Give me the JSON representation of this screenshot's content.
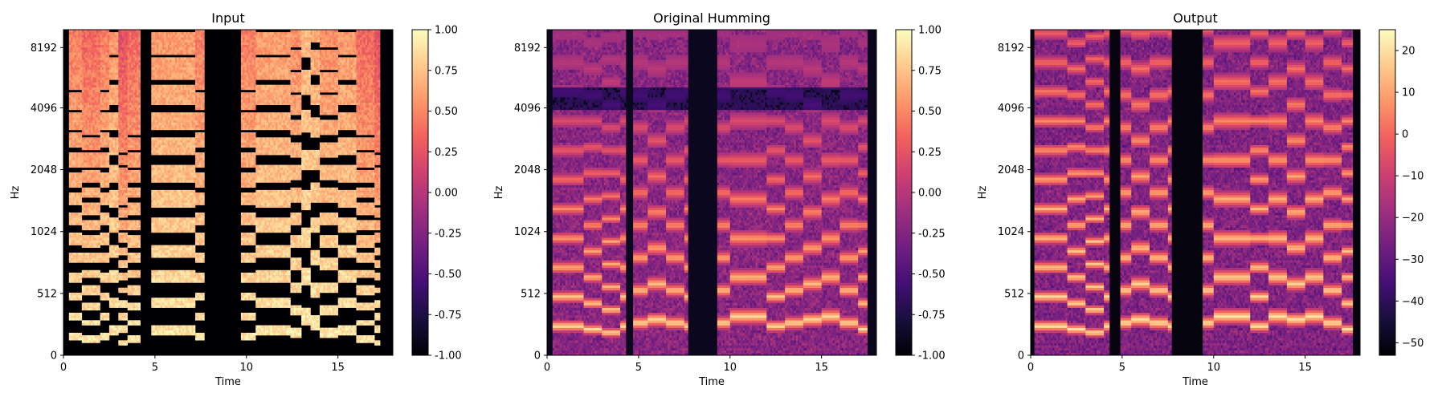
{
  "chart_data": [
    {
      "type": "heatmap",
      "title": "Input",
      "xlabel": "Time",
      "ylabel": "Hz",
      "xlim": [
        0,
        18
      ],
      "x_ticks": [
        0,
        5,
        10,
        15
      ],
      "y_ticks": [
        "0",
        "512",
        "1024",
        "2048",
        "4096",
        "8192"
      ],
      "colorbar": {
        "range": [
          -1.0,
          1.0
        ],
        "ticks": [
          "1.00",
          "0.75",
          "0.50",
          "0.25",
          "0.00",
          "-0.25",
          "-0.50",
          "-0.75",
          "-1.00"
        ]
      },
      "style": "sparse",
      "segments": [
        [
          0.3,
          4.2
        ],
        [
          4.8,
          7.7
        ],
        [
          9.7,
          17.3
        ]
      ],
      "contour": [
        [
          0,
          0.06
        ],
        [
          0.5,
          0.06
        ],
        [
          1,
          0.05
        ],
        [
          1.5,
          0.05
        ],
        [
          2,
          0.06
        ],
        [
          2.5,
          0.08
        ],
        [
          3,
          0.04
        ],
        [
          3.5,
          0.05
        ],
        [
          4,
          0.05
        ],
        [
          4.8,
          0.08
        ],
        [
          5.5,
          0.08
        ],
        [
          6.5,
          0.08
        ],
        [
          7.2,
          0.06
        ],
        [
          7.7,
          0.04
        ],
        [
          9.7,
          0.06
        ],
        [
          10.5,
          0.08
        ],
        [
          11.5,
          0.08
        ],
        [
          12.4,
          0.07
        ],
        [
          13,
          0.12
        ],
        [
          13.5,
          0.1
        ],
        [
          14,
          0.07
        ],
        [
          15,
          0.08
        ],
        [
          16,
          0.05
        ],
        [
          17,
          0.04
        ],
        [
          17.5,
          0.04
        ]
      ]
    },
    {
      "type": "heatmap",
      "title": "Original Humming",
      "xlabel": "Time",
      "ylabel": "Hz",
      "xlim": [
        0,
        18
      ],
      "x_ticks": [
        0,
        5,
        10,
        15
      ],
      "y_ticks": [
        "0",
        "512",
        "1024",
        "2048",
        "4096",
        "8192"
      ],
      "colorbar": {
        "range": [
          -1.0,
          1.0
        ],
        "ticks": [
          "1.00",
          "0.75",
          "0.50",
          "0.25",
          "0.00",
          "-0.25",
          "-0.50",
          "-0.75",
          "-1.00"
        ]
      },
      "style": "humming",
      "segments": [
        [
          0.3,
          4.3
        ],
        [
          4.7,
          7.7
        ],
        [
          9.3,
          17.5
        ]
      ],
      "contour": [
        [
          0,
          0.09
        ],
        [
          1,
          0.09
        ],
        [
          2,
          0.08
        ],
        [
          3,
          0.07
        ],
        [
          4,
          0.09
        ],
        [
          4.7,
          0.1
        ],
        [
          5.5,
          0.11
        ],
        [
          6.5,
          0.1
        ],
        [
          7.5,
          0.09
        ],
        [
          9.3,
          0.1
        ],
        [
          10,
          0.12
        ],
        [
          11,
          0.12
        ],
        [
          12,
          0.09
        ],
        [
          13,
          0.1
        ],
        [
          14,
          0.11
        ],
        [
          15,
          0.12
        ],
        [
          16,
          0.1
        ],
        [
          17,
          0.08
        ]
      ]
    },
    {
      "type": "heatmap",
      "title": "Output",
      "xlabel": "Time",
      "ylabel": "Hz",
      "xlim": [
        0,
        18
      ],
      "x_ticks": [
        0,
        5,
        10,
        15
      ],
      "y_ticks": [
        "0",
        "512",
        "1024",
        "2048",
        "4096",
        "8192"
      ],
      "colorbar": {
        "range": [
          -53,
          25
        ],
        "ticks": [
          "20",
          "10",
          "0",
          "−10",
          "−20",
          "−30",
          "−40",
          "−50"
        ]
      },
      "style": "dense",
      "segments": [
        [
          0.2,
          4.3
        ],
        [
          4.9,
          7.7
        ],
        [
          9.4,
          17.6
        ]
      ],
      "contour": [
        [
          0,
          0.09
        ],
        [
          1,
          0.09
        ],
        [
          2,
          0.08
        ],
        [
          3,
          0.07
        ],
        [
          4,
          0.09
        ],
        [
          4.9,
          0.1
        ],
        [
          5.5,
          0.11
        ],
        [
          6.5,
          0.1
        ],
        [
          7.5,
          0.09
        ],
        [
          9.4,
          0.1
        ],
        [
          10,
          0.12
        ],
        [
          11,
          0.12
        ],
        [
          12,
          0.09
        ],
        [
          13,
          0.12
        ],
        [
          14,
          0.11
        ],
        [
          15,
          0.12
        ],
        [
          16,
          0.1
        ],
        [
          17,
          0.08
        ]
      ]
    }
  ],
  "colors": {
    "background": "#ffffff",
    "colormap": [
      "#000004",
      "#180f3d",
      "#440f76",
      "#721f81",
      "#9e2f7f",
      "#cd4071",
      "#f1605d",
      "#fd9668",
      "#feca8d",
      "#fcfdbf"
    ]
  }
}
